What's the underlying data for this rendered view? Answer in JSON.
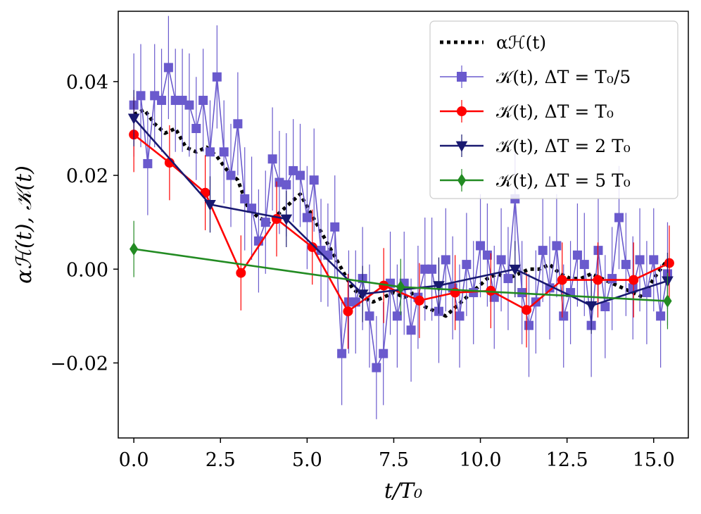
{
  "chart_data": {
    "type": "line",
    "xlabel": "t/T₀",
    "ylabel": "αℋ(t), 𝒦(t)",
    "xlim": [
      -0.45,
      16.0
    ],
    "ylim": [
      -0.036,
      0.055
    ],
    "x_ticks": [
      0.0,
      2.5,
      5.0,
      7.5,
      10.0,
      12.5,
      15.0
    ],
    "x_tick_labels": [
      "0.0",
      "2.5",
      "5.0",
      "7.5",
      "10.0",
      "12.5",
      "15.0"
    ],
    "y_ticks": [
      -0.02,
      0.0,
      0.02,
      0.04
    ],
    "y_tick_labels": [
      "−0.02",
      "0.00",
      "0.02",
      "0.04"
    ],
    "grid": false,
    "legend_position": "top-right",
    "series": [
      {
        "name": "αℋ(t)",
        "color": "#000000",
        "style": "dotted",
        "marker": "none",
        "x": [
          0.0,
          0.3,
          0.6,
          0.9,
          1.2,
          1.5,
          1.8,
          2.1,
          2.4,
          2.7,
          3.0,
          3.3,
          3.6,
          3.9,
          4.2,
          4.5,
          4.8,
          5.1,
          5.4,
          5.7,
          6.0,
          6.3,
          6.6,
          6.9,
          7.2,
          7.5,
          7.8,
          8.1,
          8.4,
          8.7,
          9.0,
          9.3,
          9.6,
          9.9,
          10.2,
          10.5,
          10.8,
          11.1,
          11.4,
          11.7,
          12.0,
          12.3,
          12.6,
          12.9,
          13.2,
          13.5,
          13.8,
          14.1,
          14.4,
          14.7,
          15.0,
          15.4
        ],
        "values": [
          0.033,
          0.034,
          0.031,
          0.029,
          0.03,
          0.026,
          0.025,
          0.026,
          0.024,
          0.021,
          0.019,
          0.013,
          0.011,
          0.01,
          0.012,
          0.014,
          0.016,
          0.012,
          0.008,
          0.004,
          0.0,
          -0.004,
          -0.006,
          -0.007,
          -0.006,
          -0.005,
          -0.006,
          -0.005,
          -0.008,
          -0.009,
          -0.01,
          -0.008,
          -0.006,
          -0.004,
          -0.002,
          -0.001,
          -0.002,
          -0.001,
          0.0,
          0.0,
          0.001,
          -0.001,
          -0.002,
          -0.002,
          -0.001,
          -0.002,
          -0.003,
          -0.004,
          -0.005,
          -0.006,
          -0.002,
          0.002
        ]
      },
      {
        "name": "𝒦(t), ΔT = T₀/5",
        "color": "#6a5acd",
        "style": "solid",
        "marker": "square",
        "thin": true,
        "x": [
          0.0,
          0.2,
          0.4,
          0.6,
          0.8,
          1.0,
          1.2,
          1.4,
          1.6,
          1.8,
          2.0,
          2.2,
          2.4,
          2.6,
          2.8,
          3.0,
          3.2,
          3.4,
          3.6,
          3.8,
          4.0,
          4.2,
          4.4,
          4.6,
          4.8,
          5.0,
          5.2,
          5.4,
          5.6,
          5.8,
          6.0,
          6.2,
          6.4,
          6.6,
          6.8,
          7.0,
          7.2,
          7.4,
          7.6,
          7.8,
          8.0,
          8.2,
          8.4,
          8.6,
          8.8,
          9.0,
          9.2,
          9.4,
          9.6,
          9.8,
          10.0,
          10.2,
          10.4,
          10.6,
          10.8,
          11.0,
          11.2,
          11.4,
          11.6,
          11.8,
          12.0,
          12.2,
          12.4,
          12.6,
          12.8,
          13.0,
          13.2,
          13.4,
          13.6,
          13.8,
          14.0,
          14.2,
          14.4,
          14.6,
          14.8,
          15.0,
          15.2,
          15.4
        ],
        "values": [
          0.035,
          0.037,
          0.0225,
          0.037,
          0.036,
          0.043,
          0.036,
          0.036,
          0.035,
          0.03,
          0.036,
          0.025,
          0.041,
          0.025,
          0.02,
          0.031,
          0.015,
          0.013,
          0.006,
          0.01,
          0.0235,
          0.0185,
          0.018,
          0.021,
          0.02,
          0.011,
          0.019,
          0.004,
          0.003,
          0.009,
          -0.018,
          -0.007,
          -0.007,
          -0.002,
          -0.01,
          -0.021,
          -0.018,
          -0.003,
          -0.01,
          -0.003,
          -0.013,
          -0.006,
          0.0,
          0.0,
          -0.009,
          0.002,
          -0.004,
          -0.01,
          0.001,
          -0.005,
          0.005,
          0.003,
          -0.006,
          0.002,
          -0.002,
          0.015,
          -0.005,
          -0.012,
          -0.007,
          0.004,
          -0.004,
          0.005,
          -0.01,
          -0.005,
          0.003,
          0.001,
          -0.012,
          0.004,
          -0.008,
          -0.002,
          0.011,
          0.001,
          -0.004,
          0.002,
          -0.005,
          0.002,
          -0.01,
          -0.001
        ],
        "errors": [
          0.011,
          0.011,
          0.011,
          0.011,
          0.011,
          0.011,
          0.011,
          0.011,
          0.011,
          0.011,
          0.011,
          0.011,
          0.011,
          0.011,
          0.011,
          0.011,
          0.011,
          0.011,
          0.011,
          0.011,
          0.011,
          0.011,
          0.011,
          0.011,
          0.011,
          0.011,
          0.011,
          0.011,
          0.011,
          0.011,
          0.011,
          0.011,
          0.011,
          0.011,
          0.011,
          0.011,
          0.011,
          0.011,
          0.011,
          0.011,
          0.011,
          0.011,
          0.011,
          0.011,
          0.011,
          0.011,
          0.011,
          0.011,
          0.011,
          0.011,
          0.011,
          0.011,
          0.011,
          0.011,
          0.011,
          0.011,
          0.011,
          0.011,
          0.011,
          0.011,
          0.011,
          0.011,
          0.011,
          0.011,
          0.011,
          0.011,
          0.011,
          0.011,
          0.011,
          0.011,
          0.011,
          0.011,
          0.011,
          0.011,
          0.011,
          0.011,
          0.011,
          0.011
        ]
      },
      {
        "name": "𝒦(t), ΔT = T₀",
        "color": "#ff0000",
        "style": "solid",
        "marker": "circle",
        "x": [
          0.0,
          1.03,
          2.06,
          3.09,
          4.12,
          5.15,
          6.18,
          7.21,
          8.24,
          9.27,
          10.3,
          11.33,
          12.36,
          13.39,
          14.42,
          15.45
        ],
        "values": [
          0.0287,
          0.0227,
          0.0163,
          -0.0008,
          0.0107,
          0.0047,
          -0.009,
          -0.0035,
          -0.0067,
          -0.005,
          -0.0046,
          -0.0087,
          -0.0023,
          -0.0023,
          -0.0023,
          0.0013
        ],
        "errors": [
          0.008,
          0.008,
          0.008,
          0.008,
          0.008,
          0.008,
          0.008,
          0.008,
          0.008,
          0.008,
          0.008,
          0.008,
          0.008,
          0.008,
          0.008,
          0.008
        ]
      },
      {
        "name": "𝒦(t), ΔT = 2 T₀",
        "color": "#191970",
        "style": "solid",
        "marker": "triangle-down",
        "x": [
          0.0,
          2.2,
          4.4,
          6.6,
          8.8,
          11.0,
          13.2,
          15.4
        ],
        "values": [
          0.0322,
          0.0138,
          0.0107,
          -0.0053,
          -0.0035,
          0.0,
          -0.0078,
          -0.0025
        ],
        "errors": [
          0.006,
          0.006,
          0.006,
          0.006,
          0.006,
          0.006,
          0.006,
          0.006
        ]
      },
      {
        "name": "𝒦(t), ΔT = 5 T₀",
        "color": "#228b22",
        "style": "solid",
        "marker": "diamond",
        "x": [
          0.0,
          7.7,
          15.4
        ],
        "values": [
          0.0043,
          -0.0038,
          -0.0068
        ],
        "errors": [
          0.006,
          0.006,
          0.006
        ]
      }
    ]
  }
}
